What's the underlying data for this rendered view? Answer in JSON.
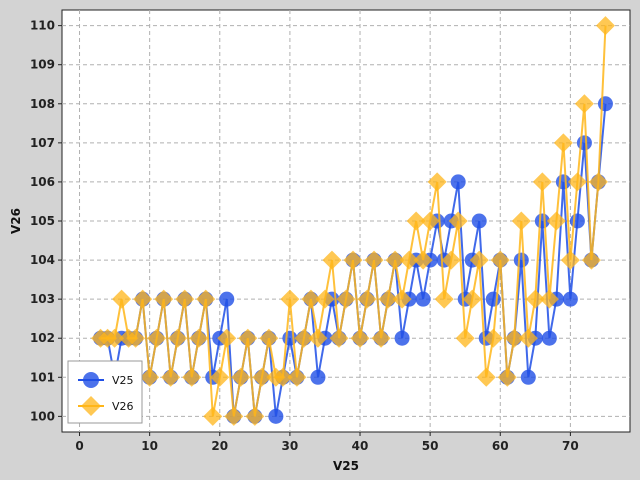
{
  "chart_data": {
    "type": "line",
    "xlabel": "V25",
    "ylabel": "V26",
    "xlim": [
      -2.5,
      78.5
    ],
    "ylim": [
      99.6,
      110.4
    ],
    "xticks": [
      0,
      10,
      20,
      30,
      40,
      50,
      60,
      70
    ],
    "yticks": [
      100,
      101,
      102,
      103,
      104,
      105,
      106,
      107,
      108,
      109,
      110
    ],
    "grid": true,
    "legend_position": "bottom-left",
    "series": [
      {
        "name": "V25",
        "color": "#1f4fe6",
        "marker": "circle",
        "x": [
          3,
          4,
          5,
          6,
          7,
          8,
          9,
          10,
          11,
          12,
          13,
          14,
          15,
          16,
          17,
          18,
          19,
          20,
          21,
          22,
          23,
          24,
          25,
          26,
          27,
          28,
          29,
          30,
          31,
          32,
          33,
          34,
          35,
          36,
          37,
          38,
          39,
          40,
          41,
          42,
          43,
          44,
          45,
          46,
          47,
          48,
          49,
          50,
          51,
          52,
          53,
          54,
          55,
          56,
          57,
          58,
          59,
          60,
          61,
          62,
          63,
          64,
          65,
          66,
          67,
          68,
          69,
          70,
          71,
          72,
          73,
          74,
          75
        ],
        "y": [
          102,
          102,
          101,
          102,
          102,
          102,
          103,
          101,
          102,
          103,
          101,
          102,
          103,
          101,
          102,
          103,
          101,
          102,
          103,
          100,
          101,
          102,
          100,
          101,
          102,
          100,
          101,
          102,
          101,
          102,
          103,
          101,
          102,
          103,
          102,
          103,
          104,
          102,
          103,
          104,
          102,
          103,
          104,
          102,
          103,
          104,
          103,
          104,
          105,
          104,
          105,
          106,
          103,
          104,
          105,
          102,
          103,
          104,
          101,
          102,
          104,
          101,
          102,
          105,
          102,
          103,
          106,
          103,
          105,
          107,
          104,
          106,
          108
        ]
      },
      {
        "name": "V26",
        "color": "#ffb619",
        "marker": "diamond",
        "x": [
          3,
          4,
          5,
          6,
          7,
          8,
          9,
          10,
          11,
          12,
          13,
          14,
          15,
          16,
          17,
          18,
          19,
          20,
          21,
          22,
          23,
          24,
          25,
          26,
          27,
          28,
          29,
          30,
          31,
          32,
          33,
          34,
          35,
          36,
          37,
          38,
          39,
          40,
          41,
          42,
          43,
          44,
          45,
          46,
          47,
          48,
          49,
          50,
          51,
          52,
          53,
          54,
          55,
          56,
          57,
          58,
          59,
          60,
          61,
          62,
          63,
          64,
          65,
          66,
          67,
          68,
          69,
          70,
          71,
          72,
          73,
          74,
          75
        ],
        "y": [
          102,
          102,
          102,
          103,
          102,
          102,
          103,
          101,
          102,
          103,
          101,
          102,
          103,
          101,
          102,
          103,
          100,
          101,
          102,
          100,
          101,
          102,
          100,
          101,
          102,
          101,
          101,
          103,
          101,
          102,
          103,
          102,
          103,
          104,
          102,
          103,
          104,
          102,
          103,
          104,
          102,
          103,
          104,
          103,
          104,
          105,
          104,
          105,
          106,
          103,
          104,
          105,
          102,
          103,
          104,
          101,
          102,
          104,
          101,
          102,
          105,
          102,
          103,
          106,
          103,
          105,
          107,
          104,
          106,
          108,
          104,
          106,
          110
        ]
      }
    ]
  }
}
